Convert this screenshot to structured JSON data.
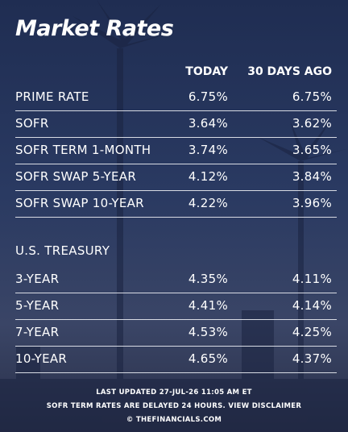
{
  "header": {
    "title": "Market Rates",
    "columns": [
      "TODAY",
      "30 DAYS AGO"
    ]
  },
  "sofr_table": {
    "rows": [
      [
        "PRIME RATE",
        "6.75%",
        "6.75%"
      ],
      [
        "SOFR",
        "3.64%",
        "3.62%"
      ],
      [
        "SOFR TERM 1-MONTH",
        "3.74%",
        "3.65%"
      ],
      [
        "SOFR SWAP 5-YEAR",
        "4.12%",
        "3.84%"
      ],
      [
        "SOFR SWAP 10-YEAR",
        "4.22%",
        "3.96%"
      ]
    ]
  },
  "treasury_table": {
    "label": "U.S. TREASURY",
    "rows": [
      [
        "3-YEAR",
        "4.35%",
        "4.11%"
      ],
      [
        "5-YEAR",
        "4.41%",
        "4.14%"
      ],
      [
        "7-YEAR",
        "4.53%",
        "4.25%"
      ],
      [
        "10-YEAR",
        "4.65%",
        "4.37%"
      ]
    ]
  },
  "footer": {
    "updated": "LAST UPDATED 27-JUL-26 11:05 AM ET",
    "note": "SOFR TERM RATES ARE DELAYED 24 HOURS. VIEW DISCLAIMER",
    "source": "© THEFINANCIALS.COM"
  }
}
